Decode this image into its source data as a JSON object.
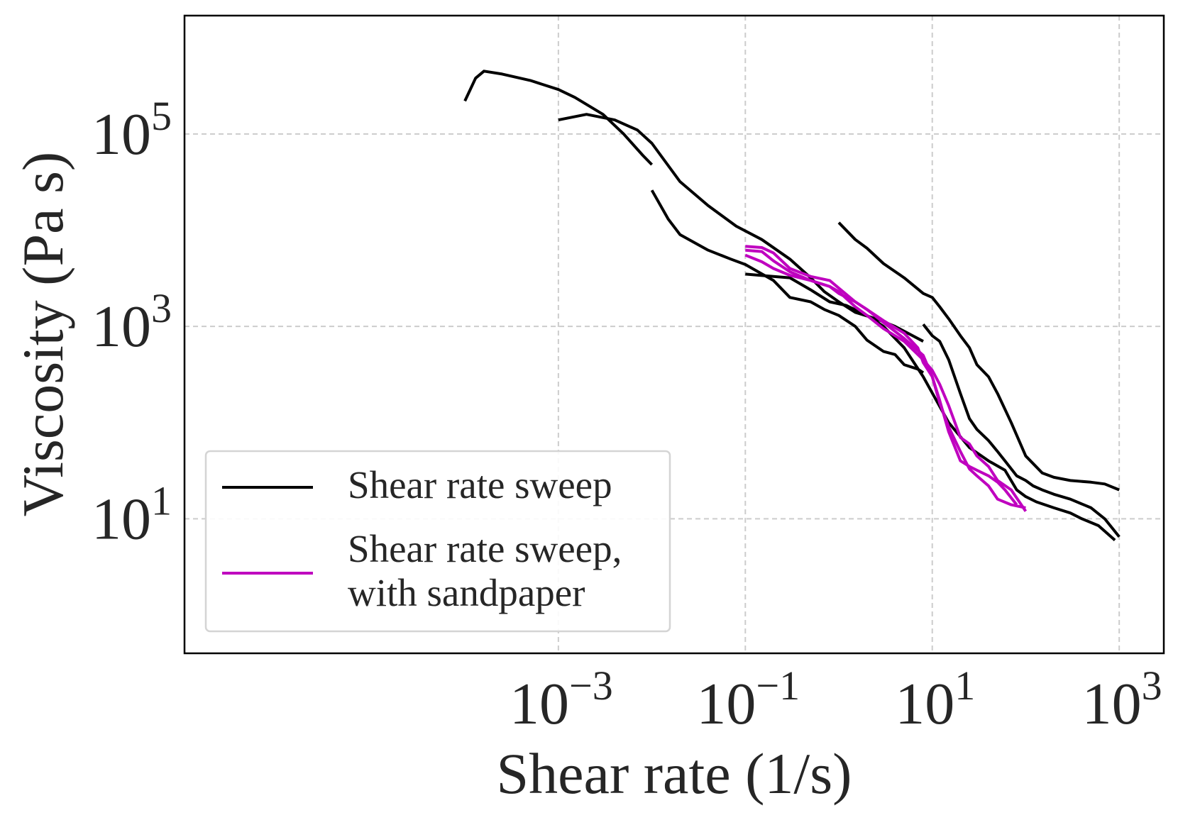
{
  "chart_data": {
    "type": "line",
    "title": "",
    "xlabel": "Shear rate (1/s)",
    "ylabel": "Viscosity (Pa s)",
    "xscale": "log",
    "yscale": "log",
    "xlim": [
      1e-07,
      3000
    ],
    "ylim": [
      0.4,
      1700000
    ],
    "grid": true,
    "legend_position": "lower-left",
    "xticks": [
      {
        "value": 0.001,
        "base": "10",
        "exp": "−3"
      },
      {
        "value": 0.1,
        "base": "10",
        "exp": "−1"
      },
      {
        "value": 10,
        "base": "10",
        "exp": "1"
      },
      {
        "value": 1000,
        "base": "10",
        "exp": "3"
      }
    ],
    "yticks": [
      {
        "value": 100000,
        "base": "10",
        "exp": "5"
      },
      {
        "value": 1000,
        "base": "10",
        "exp": "3"
      },
      {
        "value": 10,
        "base": "10",
        "exp": "1"
      }
    ],
    "legend": [
      {
        "lines": [
          "Shear rate sweep"
        ],
        "color": "#000000"
      },
      {
        "lines": [
          "Shear rate sweep,",
          "with sandpaper"
        ],
        "color": "#bf00bf"
      }
    ],
    "series": [
      {
        "name": "Shear rate sweep",
        "color": "#000000",
        "points": [
          [
            0.0001,
            220000
          ],
          [
            0.00013,
            380000
          ],
          [
            0.00016,
            450000
          ],
          [
            0.00025,
            420000
          ],
          [
            0.0005,
            360000
          ],
          [
            0.001,
            290000
          ],
          [
            0.0015,
            240000
          ],
          [
            0.003,
            160000
          ],
          [
            0.005,
            100000
          ],
          [
            0.008,
            60000
          ],
          [
            0.01,
            48000
          ]
        ]
      },
      {
        "name": "Shear rate sweep",
        "color": "#000000",
        "points": [
          [
            0.001,
            140000
          ],
          [
            0.002,
            160000
          ],
          [
            0.004,
            140000
          ],
          [
            0.007,
            110000
          ],
          [
            0.01,
            80000
          ],
          [
            0.02,
            32000
          ],
          [
            0.04,
            18000
          ],
          [
            0.08,
            11000
          ],
          [
            0.15,
            8000
          ],
          [
            0.3,
            5000
          ],
          [
            0.5,
            3200
          ],
          [
            0.7,
            2300
          ],
          [
            1,
            1800
          ],
          [
            1.5,
            1400
          ],
          [
            2.5,
            1200
          ],
          [
            4,
            1000
          ],
          [
            8,
            700
          ]
        ]
      },
      {
        "name": "Shear rate sweep",
        "color": "#000000",
        "points": [
          [
            0.01,
            26000
          ],
          [
            0.015,
            13000
          ],
          [
            0.02,
            9000
          ],
          [
            0.04,
            6200
          ],
          [
            0.07,
            5000
          ],
          [
            0.1,
            4400
          ],
          [
            0.2,
            3000
          ],
          [
            0.3,
            2000
          ],
          [
            0.5,
            1800
          ],
          [
            0.7,
            1500
          ],
          [
            1,
            1300
          ],
          [
            1.5,
            1000
          ],
          [
            2,
            720
          ],
          [
            3,
            550
          ],
          [
            4,
            510
          ],
          [
            5,
            400
          ],
          [
            7,
            360
          ],
          [
            8,
            330
          ]
        ]
      },
      {
        "name": "Shear rate sweep",
        "color": "#000000",
        "points": [
          [
            0.1,
            3500
          ],
          [
            0.2,
            3300
          ],
          [
            0.3,
            3200
          ],
          [
            0.5,
            2400
          ],
          [
            0.8,
            1800
          ],
          [
            1.2,
            1650
          ],
          [
            2,
            1300
          ],
          [
            3,
            1000
          ],
          [
            5,
            600
          ],
          [
            8,
            300
          ],
          [
            15,
            100
          ],
          [
            25,
            55
          ],
          [
            40,
            40
          ],
          [
            60,
            32
          ],
          [
            80,
            20
          ],
          [
            100,
            17
          ],
          [
            130,
            15
          ],
          [
            200,
            13
          ],
          [
            300,
            11.5
          ],
          [
            400,
            10
          ],
          [
            600,
            8.5
          ],
          [
            900,
            6
          ]
        ]
      },
      {
        "name": "Shear rate sweep",
        "color": "#000000",
        "points": [
          [
            8,
            1050
          ],
          [
            10,
            800
          ],
          [
            12,
            700
          ],
          [
            15,
            450
          ],
          [
            20,
            200
          ],
          [
            25,
            110
          ],
          [
            30,
            85
          ],
          [
            40,
            65
          ],
          [
            50,
            50
          ],
          [
            60,
            40
          ],
          [
            80,
            28
          ],
          [
            100,
            25
          ],
          [
            120,
            22
          ],
          [
            150,
            20
          ],
          [
            200,
            18
          ],
          [
            300,
            16
          ],
          [
            500,
            13
          ],
          [
            700,
            10
          ],
          [
            1000,
            6.5
          ]
        ]
      },
      {
        "name": "Shear rate sweep",
        "color": "#000000",
        "points": [
          [
            1,
            12000
          ],
          [
            1.5,
            8000
          ],
          [
            2,
            6500
          ],
          [
            3,
            4500
          ],
          [
            5,
            3200
          ],
          [
            8,
            2200
          ],
          [
            10,
            2000
          ],
          [
            12,
            1600
          ],
          [
            15,
            1200
          ],
          [
            20,
            800
          ],
          [
            25,
            600
          ],
          [
            30,
            400
          ],
          [
            40,
            300
          ],
          [
            50,
            200
          ],
          [
            70,
            100
          ],
          [
            100,
            45
          ],
          [
            150,
            30
          ],
          [
            200,
            27
          ],
          [
            300,
            25
          ],
          [
            500,
            24
          ],
          [
            700,
            23
          ],
          [
            1000,
            20
          ]
        ]
      },
      {
        "name": "Shear rate sweep, with sandpaper",
        "color": "#bf00bf",
        "points": [
          [
            0.1,
            6200
          ],
          [
            0.15,
            6000
          ],
          [
            0.2,
            4800
          ],
          [
            0.3,
            3700
          ],
          [
            0.5,
            3000
          ],
          [
            0.8,
            2600
          ],
          [
            1,
            2200
          ],
          [
            1.5,
            1800
          ],
          [
            2,
            1500
          ],
          [
            3,
            1100
          ],
          [
            5,
            750
          ],
          [
            8,
            500
          ],
          [
            10,
            300
          ],
          [
            12,
            160
          ],
          [
            15,
            90
          ],
          [
            20,
            50
          ],
          [
            25,
            33
          ],
          [
            30,
            28
          ],
          [
            40,
            22
          ],
          [
            50,
            16
          ],
          [
            70,
            14
          ],
          [
            100,
            13
          ]
        ]
      },
      {
        "name": "Shear rate sweep, with sandpaper",
        "color": "#bf00bf",
        "points": [
          [
            0.1,
            6800
          ],
          [
            0.15,
            6600
          ],
          [
            0.2,
            5800
          ],
          [
            0.3,
            4000
          ],
          [
            0.5,
            3300
          ],
          [
            0.8,
            3000
          ],
          [
            1,
            2500
          ],
          [
            1.5,
            1800
          ],
          [
            2,
            1500
          ],
          [
            3,
            1150
          ],
          [
            5,
            850
          ],
          [
            7,
            600
          ],
          [
            8,
            420
          ],
          [
            10,
            300
          ],
          [
            12,
            170
          ],
          [
            15,
            80
          ],
          [
            20,
            40
          ],
          [
            25,
            35
          ],
          [
            30,
            32
          ],
          [
            40,
            28
          ],
          [
            50,
            24
          ],
          [
            60,
            20
          ],
          [
            80,
            14
          ]
        ]
      },
      {
        "name": "Shear rate sweep, with sandpaper",
        "color": "#bf00bf",
        "points": [
          [
            0.1,
            5500
          ],
          [
            0.15,
            4700
          ],
          [
            0.2,
            4000
          ],
          [
            0.3,
            3400
          ],
          [
            0.5,
            3000
          ],
          [
            0.8,
            2600
          ],
          [
            1,
            2300
          ],
          [
            1.5,
            1600
          ],
          [
            2,
            1300
          ],
          [
            3,
            950
          ],
          [
            5,
            700
          ],
          [
            8,
            450
          ],
          [
            10,
            350
          ],
          [
            12,
            250
          ],
          [
            15,
            150
          ],
          [
            20,
            70
          ],
          [
            25,
            60
          ],
          [
            30,
            45
          ],
          [
            40,
            35
          ],
          [
            50,
            25
          ],
          [
            70,
            20
          ],
          [
            100,
            12
          ]
        ]
      }
    ]
  }
}
